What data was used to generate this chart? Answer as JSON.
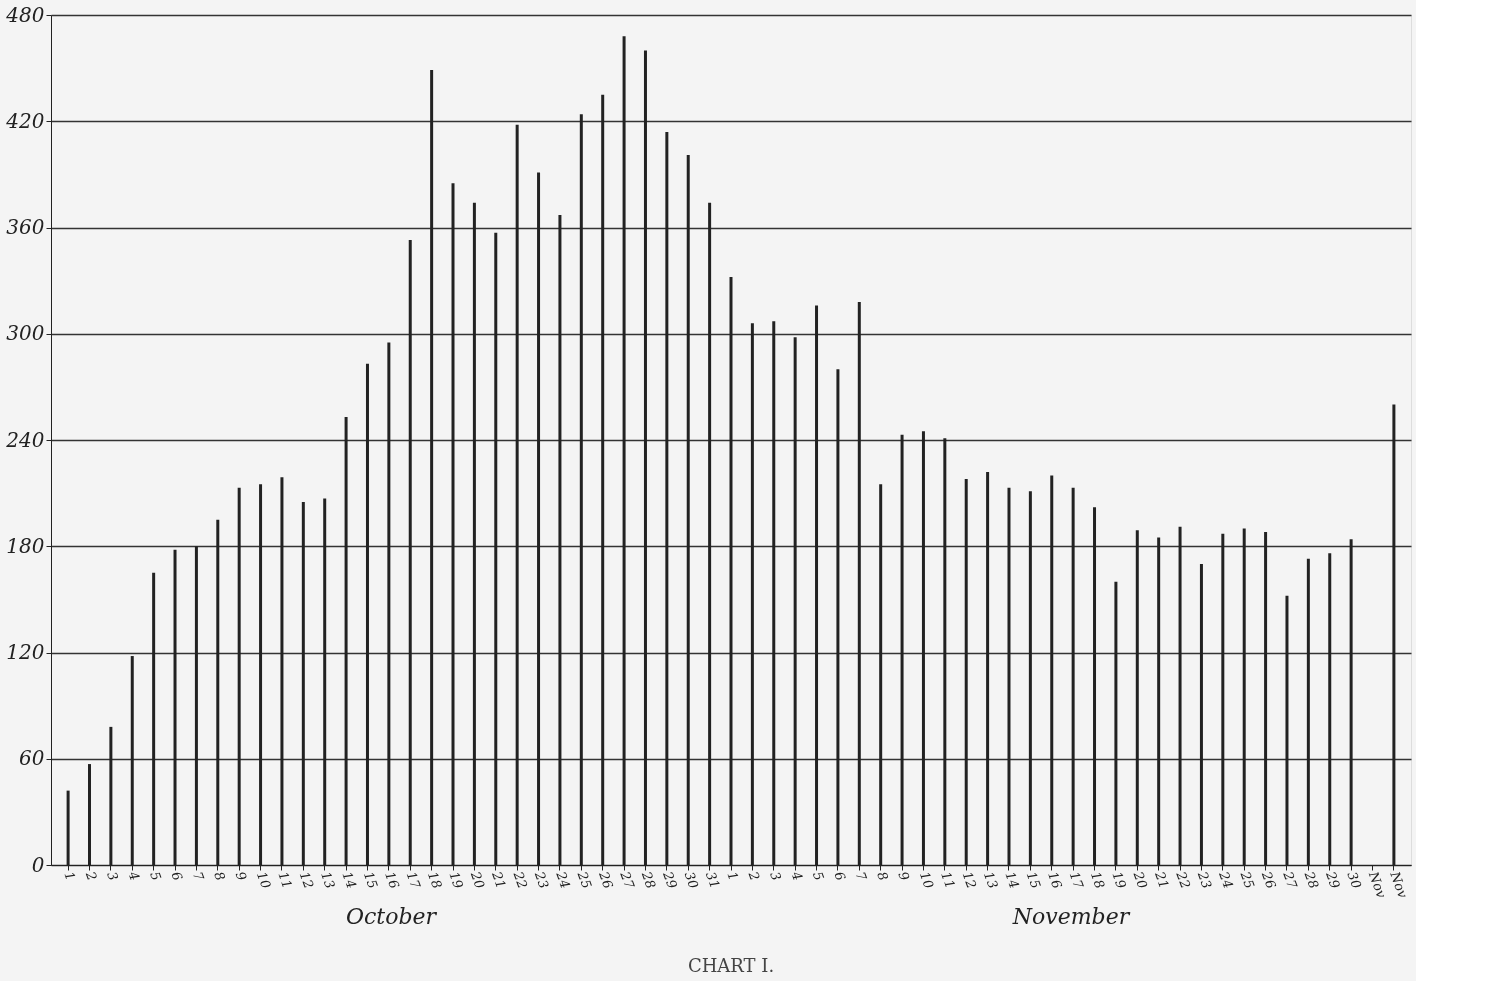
{
  "chart_data": {
    "type": "bar",
    "title": "CHART I.",
    "categories": [
      "1",
      "2",
      "3",
      "4",
      "5",
      "6",
      "7",
      "8",
      "9",
      "10",
      "11",
      "12",
      "13",
      "14",
      "15",
      "16",
      "17",
      "18",
      "19",
      "20",
      "21",
      "22",
      "23",
      "24",
      "25",
      "26",
      "27",
      "28",
      "29",
      "30",
      "31",
      "1",
      "2",
      "3",
      "4",
      "5",
      "6",
      "7",
      "8",
      "9",
      "10",
      "11",
      "12",
      "13",
      "14",
      "15",
      "16",
      "17",
      "18",
      "19",
      "20",
      "21",
      "22",
      "23",
      "24",
      "25",
      "26",
      "27",
      "28",
      "29",
      "30",
      "Nov",
      "Nov"
    ],
    "values": [
      42,
      57,
      78,
      118,
      165,
      178,
      180,
      195,
      213,
      215,
      219,
      205,
      207,
      253,
      283,
      295,
      353,
      449,
      385,
      374,
      357,
      418,
      391,
      367,
      424,
      435,
      468,
      460,
      414,
      401,
      374,
      332,
      306,
      307,
      298,
      316,
      280,
      318,
      215,
      243,
      245,
      241,
      218,
      222,
      213,
      211,
      220,
      213,
      202,
      160,
      189,
      185,
      191,
      170,
      187,
      190,
      188,
      152,
      173,
      176,
      184,
      null,
      260
    ],
    "color": "#222222",
    "ylim": [
      0,
      480
    ],
    "yticks": [
      0,
      60,
      120,
      180,
      240,
      300,
      360,
      420,
      480
    ],
    "grid": "y",
    "annotations": [
      "October",
      "November"
    ]
  }
}
